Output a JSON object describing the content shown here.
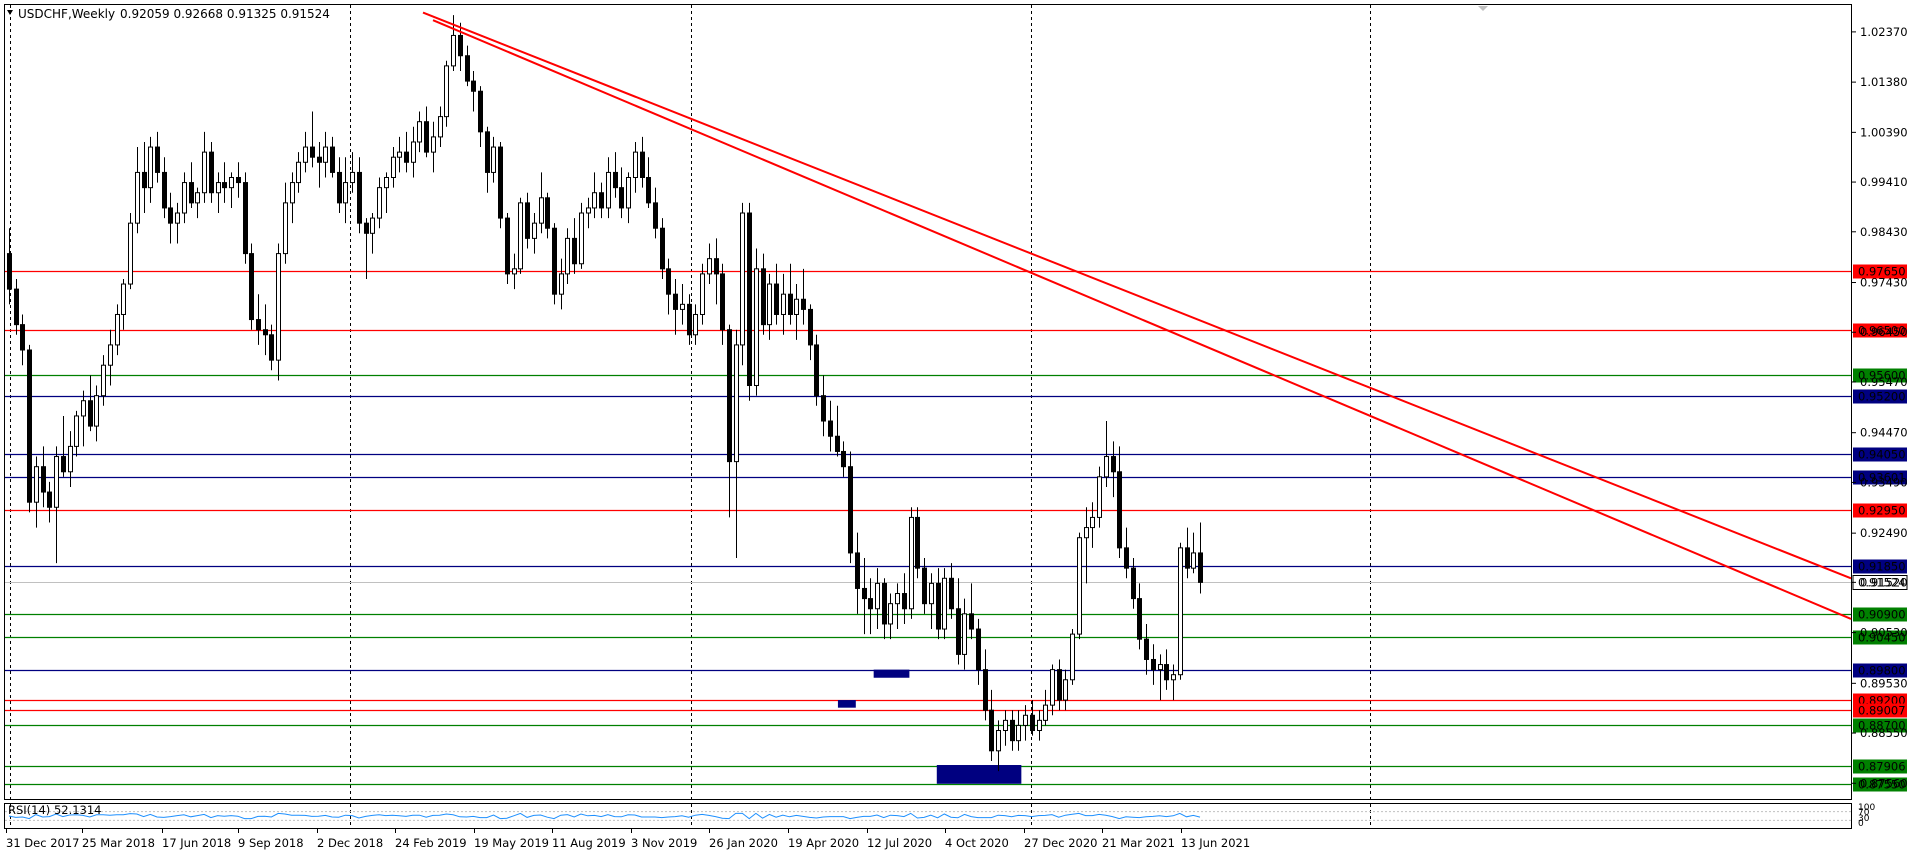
{
  "header": {
    "symbol": "USDCHF,Weekly",
    "ohlc": "0.92059 0.92668 0.91325 0.91524"
  },
  "chart_data": {
    "type": "candlestick",
    "ylim": [
      0.8725,
      1.029
    ],
    "grid": "vertical-dotted",
    "y_ticks": [
      "1.02370",
      "1.01380",
      "1.00390",
      "0.99410",
      "0.98430",
      "0.97430",
      "0.96450",
      "0.95470",
      "0.94470",
      "0.93490",
      "0.92490",
      "0.91520",
      "0.90530",
      "0.89530",
      "0.88550",
      "0.87560"
    ],
    "x_ticks": [
      "31 Dec 2017",
      "25 Mar 2018",
      "17 Jun 2018",
      "9 Sep 2018",
      "2 Dec 2018",
      "24 Feb 2019",
      "19 May 2019",
      "11 Aug 2019",
      "3 Nov 2019",
      "26 Jan 2020",
      "19 Apr 2020",
      "12 Jul 2020",
      "4 Oct 2020",
      "27 Dec 2020",
      "21 Mar 2021",
      "13 Jun 2021"
    ],
    "levels": [
      {
        "label": "0.97650",
        "value": 0.9765,
        "color": "#ff0000"
      },
      {
        "label": "0.96500",
        "value": 0.965,
        "color": "#ff0000"
      },
      {
        "label": "0.95600",
        "value": 0.956,
        "color": "#008000"
      },
      {
        "label": "0.95200",
        "value": 0.952,
        "color": "#000080"
      },
      {
        "label": "0.94050",
        "value": 0.9405,
        "color": "#000080"
      },
      {
        "label": "0.93601",
        "value": 0.93601,
        "color": "#000080"
      },
      {
        "label": "0.92950",
        "value": 0.9295,
        "color": "#ff0000"
      },
      {
        "label": "0.91850",
        "value": 0.9185,
        "color": "#000080"
      },
      {
        "label": "0.91524",
        "value": 0.91524,
        "color": "#c0c0c0",
        "current": true
      },
      {
        "label": "0.90900",
        "value": 0.909,
        "color": "#008000"
      },
      {
        "label": "0.90450",
        "value": 0.9045,
        "color": "#008000"
      },
      {
        "label": "0.89800",
        "value": 0.898,
        "color": "#000080"
      },
      {
        "label": "0.89200",
        "value": 0.892,
        "color": "#ff0000"
      },
      {
        "label": "0.89007",
        "value": 0.89007,
        "color": "#ff0000"
      },
      {
        "label": "0.88700",
        "value": 0.887,
        "color": "#008000"
      },
      {
        "label": "0.87906",
        "value": 0.87906,
        "color": "#008000"
      },
      {
        "label": "0.87550",
        "value": 0.8755,
        "color": "#008000"
      }
    ],
    "trendlines": [
      {
        "from": [
          0.0,
          1.0275
        ],
        "to": [
          1.0,
          0.916
        ],
        "color": "#ff0000"
      },
      {
        "from": [
          0.015,
          1.026
        ],
        "to": [
          1.0,
          0.908
        ],
        "color": "#ff0000"
      }
    ],
    "zones": [
      {
        "from_idx": 0.779,
        "to_idx": 0.85,
        "low": 0.8755,
        "high": 0.8792,
        "color": "#000080"
      },
      {
        "from_idx": 0.726,
        "to_idx": 0.756,
        "low": 0.8964,
        "high": 0.898,
        "color": "#000080"
      },
      {
        "from_idx": 0.696,
        "to_idx": 0.711,
        "low": 0.8905,
        "high": 0.892,
        "color": "#000080"
      }
    ],
    "series_ohlc": [
      [
        0.98,
        0.985,
        0.97,
        0.973
      ],
      [
        0.973,
        0.975,
        0.964,
        0.966
      ],
      [
        0.966,
        0.968,
        0.958,
        0.961
      ],
      [
        0.961,
        0.962,
        0.929,
        0.931
      ],
      [
        0.931,
        0.94,
        0.926,
        0.938
      ],
      [
        0.938,
        0.942,
        0.93,
        0.933
      ],
      [
        0.933,
        0.935,
        0.927,
        0.93
      ],
      [
        0.93,
        0.942,
        0.919,
        0.94
      ],
      [
        0.94,
        0.948,
        0.936,
        0.937
      ],
      [
        0.937,
        0.945,
        0.934,
        0.942
      ],
      [
        0.942,
        0.949,
        0.94,
        0.948
      ],
      [
        0.948,
        0.953,
        0.942,
        0.951
      ],
      [
        0.951,
        0.956,
        0.945,
        0.946
      ],
      [
        0.946,
        0.954,
        0.943,
        0.952
      ],
      [
        0.952,
        0.96,
        0.95,
        0.958
      ],
      [
        0.958,
        0.965,
        0.954,
        0.962
      ],
      [
        0.962,
        0.97,
        0.96,
        0.968
      ],
      [
        0.968,
        0.975,
        0.965,
        0.974
      ],
      [
        0.974,
        0.988,
        0.973,
        0.986
      ],
      [
        0.986,
        1.001,
        0.984,
        0.996
      ],
      [
        0.996,
        1.002,
        0.988,
        0.993
      ],
      [
        0.993,
        1.003,
        0.99,
        1.001
      ],
      [
        1.001,
        1.004,
        0.994,
        0.996
      ],
      [
        0.996,
        0.999,
        0.987,
        0.989
      ],
      [
        0.989,
        0.992,
        0.982,
        0.986
      ],
      [
        0.986,
        0.99,
        0.982,
        0.988
      ],
      [
        0.988,
        0.996,
        0.986,
        0.994
      ],
      [
        0.994,
        0.998,
        0.989,
        0.99
      ],
      [
        0.99,
        0.993,
        0.987,
        0.992
      ],
      [
        0.992,
        1.004,
        0.99,
        1.0
      ],
      [
        1.0,
        1.002,
        0.99,
        0.992
      ],
      [
        0.992,
        0.996,
        0.988,
        0.994
      ],
      [
        0.994,
        0.998,
        0.99,
        0.993
      ],
      [
        0.993,
        0.996,
        0.989,
        0.995
      ],
      [
        0.995,
        0.998,
        0.991,
        0.994
      ],
      [
        0.994,
        0.996,
        0.978,
        0.98
      ],
      [
        0.98,
        0.982,
        0.965,
        0.967
      ],
      [
        0.967,
        0.972,
        0.962,
        0.965
      ],
      [
        0.965,
        0.97,
        0.96,
        0.964
      ],
      [
        0.964,
        0.966,
        0.957,
        0.959
      ],
      [
        0.959,
        0.982,
        0.955,
        0.98
      ],
      [
        0.98,
        0.994,
        0.978,
        0.99
      ],
      [
        0.99,
        0.996,
        0.986,
        0.994
      ],
      [
        0.994,
        1.0,
        0.992,
        0.998
      ],
      [
        0.998,
        1.004,
        0.996,
        1.001
      ],
      [
        1.001,
        1.008,
        0.997,
        0.999
      ],
      [
        0.999,
        1.002,
        0.993,
        0.998
      ],
      [
        0.998,
        1.004,
        0.995,
        1.001
      ],
      [
        1.001,
        1.003,
        0.995,
        0.996
      ],
      [
        0.996,
        0.999,
        0.988,
        0.99
      ],
      [
        0.99,
        0.999,
        0.986,
        0.994
      ],
      [
        0.994,
        1.0,
        0.992,
        0.996
      ],
      [
        0.996,
        0.999,
        0.984,
        0.986
      ],
      [
        0.986,
        0.987,
        0.975,
        0.984
      ],
      [
        0.984,
        0.988,
        0.98,
        0.987
      ],
      [
        0.987,
        0.995,
        0.985,
        0.993
      ],
      [
        0.993,
        0.996,
        0.988,
        0.995
      ],
      [
        0.995,
        1.001,
        0.993,
        0.999
      ],
      [
        0.999,
        1.003,
        0.996,
        1.0
      ],
      [
        1.0,
        1.004,
        0.996,
        0.998
      ],
      [
        0.998,
        1.005,
        0.995,
        1.002
      ],
      [
        1.002,
        1.008,
        1.0,
        1.006
      ],
      [
        1.006,
        1.009,
        0.999,
        1.0
      ],
      [
        1.0,
        1.006,
        0.996,
        1.003
      ],
      [
        1.003,
        1.009,
        1.001,
        1.007
      ],
      [
        1.007,
        1.018,
        1.005,
        1.017
      ],
      [
        1.017,
        1.027,
        1.016,
        1.023
      ],
      [
        1.023,
        1.0255,
        1.016,
        1.019
      ],
      [
        1.019,
        1.021,
        1.013,
        1.014
      ],
      [
        1.014,
        1.016,
        1.008,
        1.012
      ],
      [
        1.012,
        1.013,
        1.001,
        1.004
      ],
      [
        1.004,
        1.005,
        0.992,
        0.996
      ],
      [
        0.996,
        1.003,
        0.994,
        1.001
      ],
      [
        1.001,
        1.002,
        0.985,
        0.987
      ],
      [
        0.987,
        0.988,
        0.974,
        0.976
      ],
      [
        0.976,
        0.98,
        0.973,
        0.977
      ],
      [
        0.977,
        0.991,
        0.976,
        0.99
      ],
      [
        0.99,
        0.992,
        0.981,
        0.983
      ],
      [
        0.983,
        0.988,
        0.98,
        0.986
      ],
      [
        0.986,
        0.996,
        0.984,
        0.991
      ],
      [
        0.991,
        0.992,
        0.983,
        0.985
      ],
      [
        0.985,
        0.986,
        0.97,
        0.972
      ],
      [
        0.972,
        0.979,
        0.969,
        0.976
      ],
      [
        0.976,
        0.985,
        0.974,
        0.983
      ],
      [
        0.983,
        0.987,
        0.976,
        0.978
      ],
      [
        0.978,
        0.99,
        0.977,
        0.988
      ],
      [
        0.988,
        0.991,
        0.985,
        0.989
      ],
      [
        0.989,
        0.996,
        0.987,
        0.992
      ],
      [
        0.992,
        0.994,
        0.987,
        0.989
      ],
      [
        0.989,
        0.999,
        0.987,
        0.996
      ],
      [
        0.996,
        1.0,
        0.991,
        0.993
      ],
      [
        0.993,
        0.997,
        0.987,
        0.989
      ],
      [
        0.989,
        0.996,
        0.986,
        0.995
      ],
      [
        0.995,
        1.002,
        0.992,
        1.0
      ],
      [
        1.0,
        1.003,
        0.993,
        0.995
      ],
      [
        0.995,
        0.999,
        0.989,
        0.99
      ],
      [
        0.99,
        0.993,
        0.983,
        0.985
      ],
      [
        0.985,
        0.987,
        0.975,
        0.977
      ],
      [
        0.977,
        0.979,
        0.968,
        0.972
      ],
      [
        0.972,
        0.975,
        0.964,
        0.969
      ],
      [
        0.969,
        0.974,
        0.966,
        0.97
      ],
      [
        0.97,
        0.972,
        0.962,
        0.964
      ],
      [
        0.964,
        0.97,
        0.962,
        0.968
      ],
      [
        0.968,
        0.978,
        0.966,
        0.976
      ],
      [
        0.976,
        0.982,
        0.974,
        0.979
      ],
      [
        0.979,
        0.983,
        0.97,
        0.976
      ],
      [
        0.976,
        0.978,
        0.962,
        0.965
      ],
      [
        0.965,
        0.966,
        0.928,
        0.939
      ],
      [
        0.939,
        0.965,
        0.92,
        0.962
      ],
      [
        0.962,
        0.99,
        0.958,
        0.988
      ],
      [
        0.988,
        0.99,
        0.951,
        0.954
      ],
      [
        0.954,
        0.981,
        0.952,
        0.977
      ],
      [
        0.977,
        0.98,
        0.964,
        0.966
      ],
      [
        0.966,
        0.976,
        0.963,
        0.974
      ],
      [
        0.974,
        0.978,
        0.966,
        0.968
      ],
      [
        0.968,
        0.976,
        0.964,
        0.972
      ],
      [
        0.972,
        0.978,
        0.966,
        0.968
      ],
      [
        0.968,
        0.974,
        0.963,
        0.971
      ],
      [
        0.971,
        0.977,
        0.966,
        0.969
      ],
      [
        0.969,
        0.97,
        0.959,
        0.962
      ],
      [
        0.962,
        0.964,
        0.95,
        0.952
      ],
      [
        0.952,
        0.956,
        0.944,
        0.947
      ],
      [
        0.947,
        0.951,
        0.941,
        0.944
      ],
      [
        0.944,
        0.95,
        0.94,
        0.941
      ],
      [
        0.941,
        0.943,
        0.936,
        0.938
      ],
      [
        0.938,
        0.941,
        0.919,
        0.921
      ],
      [
        0.921,
        0.925,
        0.909,
        0.914
      ],
      [
        0.914,
        0.92,
        0.905,
        0.912
      ],
      [
        0.912,
        0.916,
        0.905,
        0.91
      ],
      [
        0.91,
        0.918,
        0.906,
        0.915
      ],
      [
        0.915,
        0.916,
        0.904,
        0.907
      ],
      [
        0.907,
        0.913,
        0.904,
        0.911
      ],
      [
        0.911,
        0.915,
        0.906,
        0.913
      ],
      [
        0.913,
        0.917,
        0.907,
        0.91
      ],
      [
        0.91,
        0.93,
        0.908,
        0.928
      ],
      [
        0.928,
        0.93,
        0.916,
        0.918
      ],
      [
        0.918,
        0.92,
        0.909,
        0.911
      ],
      [
        0.911,
        0.917,
        0.906,
        0.915
      ],
      [
        0.915,
        0.918,
        0.904,
        0.906
      ],
      [
        0.906,
        0.918,
        0.904,
        0.916
      ],
      [
        0.916,
        0.919,
        0.908,
        0.91
      ],
      [
        0.91,
        0.916,
        0.899,
        0.901
      ],
      [
        0.901,
        0.912,
        0.898,
        0.909
      ],
      [
        0.909,
        0.915,
        0.904,
        0.906
      ],
      [
        0.906,
        0.908,
        0.895,
        0.898
      ],
      [
        0.898,
        0.902,
        0.888,
        0.89
      ],
      [
        0.89,
        0.894,
        0.88,
        0.882
      ],
      [
        0.882,
        0.888,
        0.878,
        0.886
      ],
      [
        0.886,
        0.89,
        0.883,
        0.888
      ],
      [
        0.888,
        0.89,
        0.882,
        0.884
      ],
      [
        0.884,
        0.89,
        0.882,
        0.887
      ],
      [
        0.887,
        0.891,
        0.884,
        0.889
      ],
      [
        0.889,
        0.892,
        0.885,
        0.886
      ],
      [
        0.886,
        0.89,
        0.884,
        0.888
      ],
      [
        0.888,
        0.894,
        0.887,
        0.891
      ],
      [
        0.891,
        0.899,
        0.889,
        0.898
      ],
      [
        0.898,
        0.9,
        0.89,
        0.892
      ],
      [
        0.892,
        0.898,
        0.89,
        0.896
      ],
      [
        0.896,
        0.906,
        0.895,
        0.905
      ],
      [
        0.905,
        0.925,
        0.904,
        0.924
      ],
      [
        0.924,
        0.93,
        0.915,
        0.926
      ],
      [
        0.926,
        0.931,
        0.922,
        0.928
      ],
      [
        0.928,
        0.938,
        0.926,
        0.936
      ],
      [
        0.936,
        0.947,
        0.934,
        0.94
      ],
      [
        0.94,
        0.943,
        0.932,
        0.937
      ],
      [
        0.937,
        0.942,
        0.92,
        0.922
      ],
      [
        0.922,
        0.926,
        0.916,
        0.918
      ],
      [
        0.918,
        0.92,
        0.91,
        0.912
      ],
      [
        0.912,
        0.915,
        0.902,
        0.904
      ],
      [
        0.904,
        0.907,
        0.897,
        0.9
      ],
      [
        0.9,
        0.903,
        0.895,
        0.898
      ],
      [
        0.898,
        0.901,
        0.892,
        0.899
      ],
      [
        0.899,
        0.902,
        0.894,
        0.896
      ],
      [
        0.896,
        0.899,
        0.892,
        0.897
      ],
      [
        0.897,
        0.923,
        0.896,
        0.922
      ],
      [
        0.922,
        0.926,
        0.916,
        0.918
      ],
      [
        0.918,
        0.925,
        0.917,
        0.921
      ],
      [
        0.921,
        0.927,
        0.913,
        0.9152
      ]
    ]
  },
  "indicator": {
    "label": "RSI(14) 52.1314",
    "ticks": [
      "100",
      "70",
      "30",
      "0"
    ]
  }
}
